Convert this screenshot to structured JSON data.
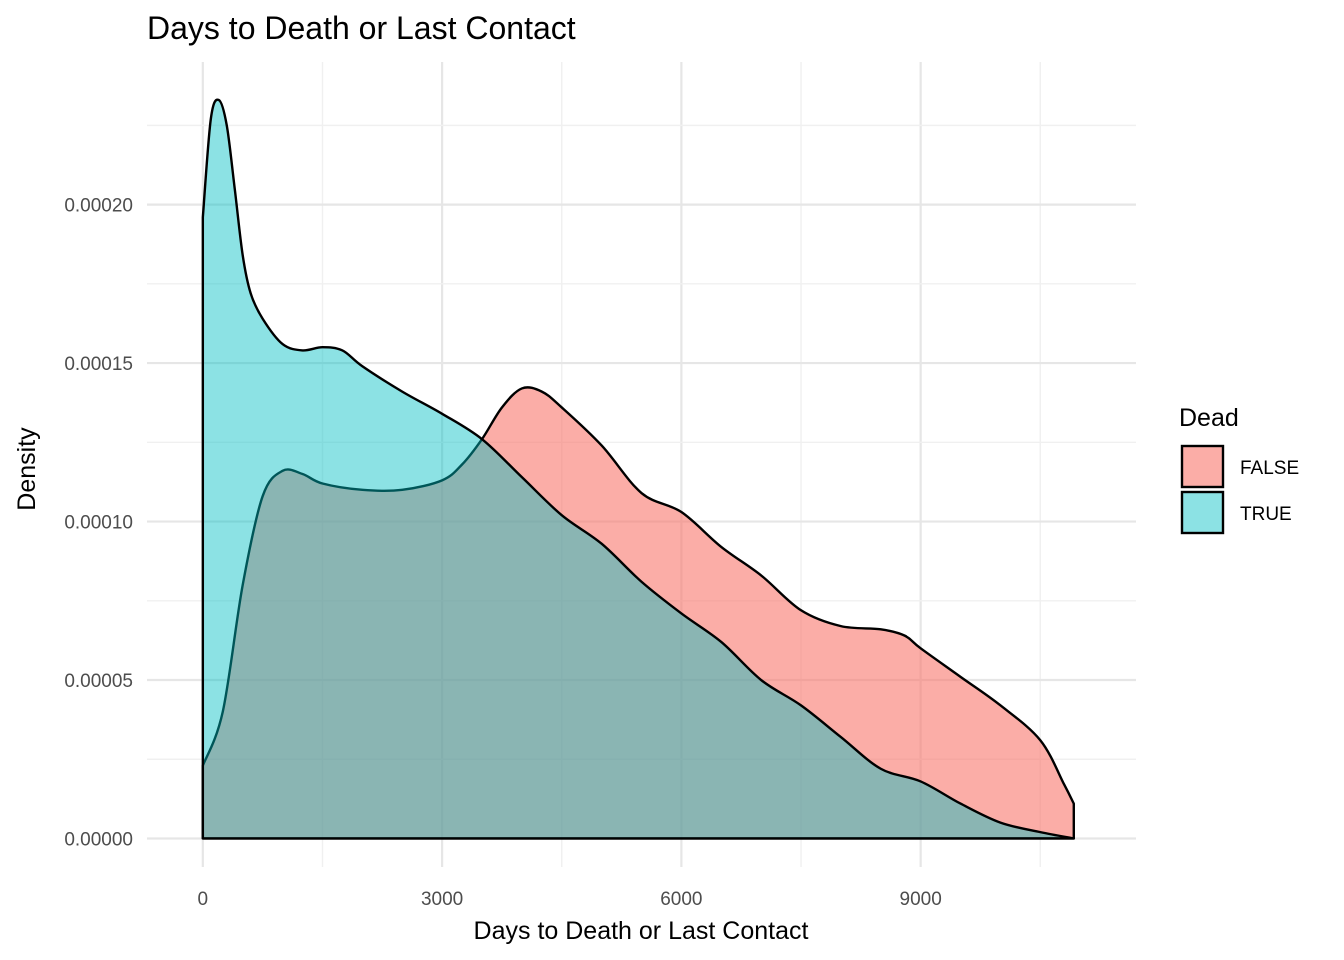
{
  "chart_data": {
    "type": "area",
    "title": "Days to Death or Last Contact",
    "xlabel": "Days to Death or Last Contact",
    "ylabel": "Density",
    "xlim": [
      -700,
      11700
    ],
    "ylim": [
      -9e-06,
      0.000245
    ],
    "x_ticks": [
      0,
      3000,
      6000,
      9000
    ],
    "y_ticks": [
      0.0,
      5e-05,
      0.0001,
      0.00015,
      0.0002
    ],
    "y_tick_labels": [
      "0.00000",
      "0.00005",
      "0.00010",
      "0.00015",
      "0.00020"
    ],
    "grid": true,
    "legend": {
      "title": "Dead",
      "position": "right"
    },
    "series": [
      {
        "name": "FALSE",
        "color": "#F8766D",
        "fill_opacity": 0.6,
        "x": [
          0,
          250,
          500,
          750,
          1000,
          1250,
          1500,
          2000,
          2500,
          3000,
          3250,
          3500,
          3750,
          4000,
          4250,
          4500,
          5000,
          5500,
          6000,
          6500,
          7000,
          7500,
          8000,
          8500,
          8800,
          9000,
          9500,
          10000,
          10500,
          10800,
          10920
        ],
        "values": [
          2.3e-05,
          4e-05,
          8e-05,
          0.000108,
          0.000116,
          0.000115,
          0.000112,
          0.00011,
          0.00011,
          0.000113,
          0.000118,
          0.000126,
          0.000136,
          0.000142,
          0.000141,
          0.000136,
          0.000124,
          0.000109,
          0.000103,
          9.2e-05,
          8.3e-05,
          7.2e-05,
          6.7e-05,
          6.6e-05,
          6.4e-05,
          6e-05,
          5.1e-05,
          4.2e-05,
          3.1e-05,
          1.7e-05,
          1.1e-05
        ]
      },
      {
        "name": "TRUE",
        "color": "#00BFC4",
        "fill_opacity": 0.45,
        "x": [
          0,
          100,
          200,
          300,
          400,
          500,
          600,
          750,
          1000,
          1250,
          1500,
          1750,
          2000,
          2500,
          3000,
          3500,
          4000,
          4500,
          5000,
          5500,
          6000,
          6500,
          7000,
          7500,
          8000,
          8500,
          9000,
          9500,
          10000,
          10500,
          10920
        ],
        "values": [
          0.000196,
          0.000227,
          0.000233,
          0.000225,
          0.000205,
          0.000184,
          0.000172,
          0.000164,
          0.000156,
          0.000154,
          0.000155,
          0.000154,
          0.000149,
          0.000141,
          0.000134,
          0.000126,
          0.000114,
          0.000102,
          9.3e-05,
          8.1e-05,
          7.1e-05,
          6.2e-05,
          5e-05,
          4.2e-05,
          3.2e-05,
          2.2e-05,
          1.8e-05,
          1.1e-05,
          5e-06,
          2e-06,
          0.0
        ]
      }
    ]
  }
}
